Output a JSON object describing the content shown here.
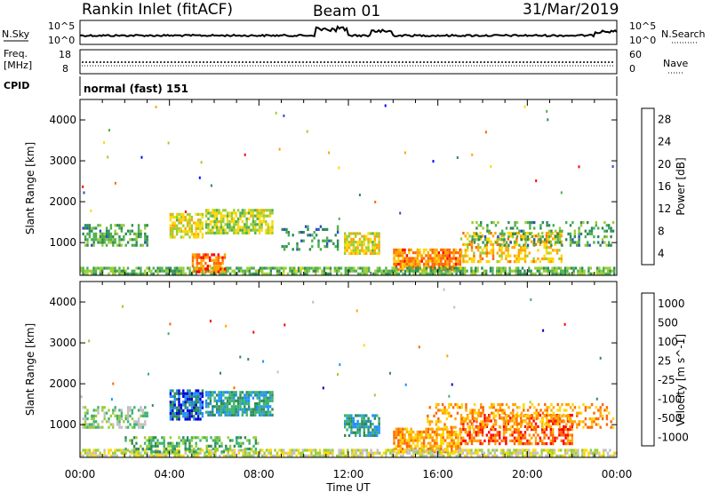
{
  "header": {
    "station": "Rankin Inlet (fitACF)",
    "beam": "Beam 01",
    "date": "31/Mar/2019"
  },
  "noise_panel": {
    "left_label": "N.Sky",
    "right_label": "N.Search",
    "left_ticks": [
      "10^5",
      "10^0"
    ],
    "right_ticks": [
      "10^5",
      "10^0"
    ]
  },
  "freq_panel": {
    "left_label_1": "Freq.",
    "left_label_2": "[MHz]",
    "right_label": "Nave",
    "left_ticks": [
      "18",
      "8"
    ],
    "right_ticks": [
      "60",
      "0"
    ]
  },
  "cpid_panel": {
    "label": "CPID",
    "mode": "normal (fast) 151"
  },
  "colors": {
    "power": [
      "#0000ff",
      "#2a4fbf",
      "#2e8b57",
      "#4caf50",
      "#9acd32",
      "#ffd700",
      "#ffa500",
      "#ff6600",
      "#ff0000"
    ],
    "velocity": [
      "#ff0000",
      "#ff6600",
      "#ffa500",
      "#ffd700",
      "#c0c0c0",
      "#9acd32",
      "#3cb371",
      "#2e8b57",
      "#1e90ff",
      "#0000cd"
    ],
    "ground": "#888888"
  },
  "chart_data": [
    {
      "type": "heatmap",
      "panel": "power",
      "ylabel": "Slant Range [km]",
      "xlabel": "Time UT",
      "ylim": [
        200,
        4500
      ],
      "xlim": [
        0,
        24
      ],
      "x_ticks": [
        "00:00",
        "04:00",
        "08:00",
        "12:00",
        "16:00",
        "20:00",
        "00:00"
      ],
      "y_ticks": [
        "1000",
        "2000",
        "3000",
        "4000"
      ],
      "colorbar": {
        "label": "Power [dB]",
        "ticks": [
          "28",
          "24",
          "20",
          "16",
          "12",
          "8",
          "4"
        ],
        "range": [
          0,
          30
        ]
      },
      "regions": [
        {
          "t0": 0.1,
          "t1": 3.0,
          "r0": 900,
          "r1": 1400,
          "level": 10,
          "density": 0.5
        },
        {
          "t0": 4.0,
          "t1": 5.5,
          "r0": 1100,
          "r1": 1700,
          "level": 18,
          "density": 0.7
        },
        {
          "t0": 5.6,
          "t1": 8.6,
          "r0": 1200,
          "r1": 1800,
          "level": 16,
          "density": 0.75
        },
        {
          "t0": 11.8,
          "t1": 13.4,
          "r0": 700,
          "r1": 1200,
          "level": 18,
          "density": 0.75
        },
        {
          "t0": 14.0,
          "t1": 17.0,
          "r0": 300,
          "r1": 800,
          "level": 24,
          "density": 0.8
        },
        {
          "t0": 17.0,
          "t1": 21.5,
          "r0": 500,
          "r1": 1200,
          "level": 20,
          "density": 0.5
        },
        {
          "t0": 0.0,
          "t1": 24.0,
          "r0": 200,
          "r1": 400,
          "level": 12,
          "density": 0.7
        },
        {
          "t0": 5.0,
          "t1": 6.5,
          "r0": 250,
          "r1": 700,
          "level": 26,
          "density": 0.7
        },
        {
          "t0": 9.0,
          "t1": 11.5,
          "r0": 800,
          "r1": 1400,
          "level": 8,
          "density": 0.25
        },
        {
          "t0": 17.5,
          "t1": 23.8,
          "r0": 900,
          "r1": 1500,
          "level": 10,
          "density": 0.3
        }
      ]
    },
    {
      "type": "heatmap",
      "panel": "velocity",
      "ylabel": "Slant Range [km]",
      "xlabel": "Time UT",
      "ylim": [
        200,
        4500
      ],
      "xlim": [
        0,
        24
      ],
      "x_ticks": [
        "00:00",
        "04:00",
        "08:00",
        "12:00",
        "16:00",
        "20:00",
        "00:00"
      ],
      "y_ticks": [
        "1000",
        "2000",
        "3000",
        "4000"
      ],
      "colorbar": {
        "label": "Velocity [m s^-1]",
        "ticks": [
          "1000",
          "500",
          "100",
          "25",
          "-25",
          "-100",
          "-500",
          "-1000"
        ]
      },
      "regions": [
        {
          "t0": 0.1,
          "t1": 3.0,
          "r0": 900,
          "r1": 1400,
          "level": 5,
          "density": 0.5
        },
        {
          "t0": 4.0,
          "t1": 5.5,
          "r0": 1100,
          "r1": 1800,
          "level": 8,
          "density": 0.75
        },
        {
          "t0": 5.6,
          "t1": 8.6,
          "r0": 1200,
          "r1": 1800,
          "level": 7,
          "density": 0.75
        },
        {
          "t0": 11.8,
          "t1": 13.4,
          "r0": 700,
          "r1": 1200,
          "level": 7,
          "density": 0.7
        },
        {
          "t0": 14.0,
          "t1": 17.0,
          "r0": 300,
          "r1": 900,
          "level": 2,
          "density": 0.75
        },
        {
          "t0": 17.0,
          "t1": 22.0,
          "r0": 500,
          "r1": 1200,
          "level": 1,
          "density": 0.55
        },
        {
          "t0": 0.0,
          "t1": 24.0,
          "r0": 200,
          "r1": 400,
          "level": 4,
          "density": 0.7
        },
        {
          "t0": 2.0,
          "t1": 8.0,
          "r0": 300,
          "r1": 700,
          "level": 6,
          "density": 0.4
        },
        {
          "t0": 15.5,
          "t1": 23.8,
          "r0": 900,
          "r1": 1500,
          "level": 2,
          "density": 0.35
        }
      ]
    }
  ]
}
